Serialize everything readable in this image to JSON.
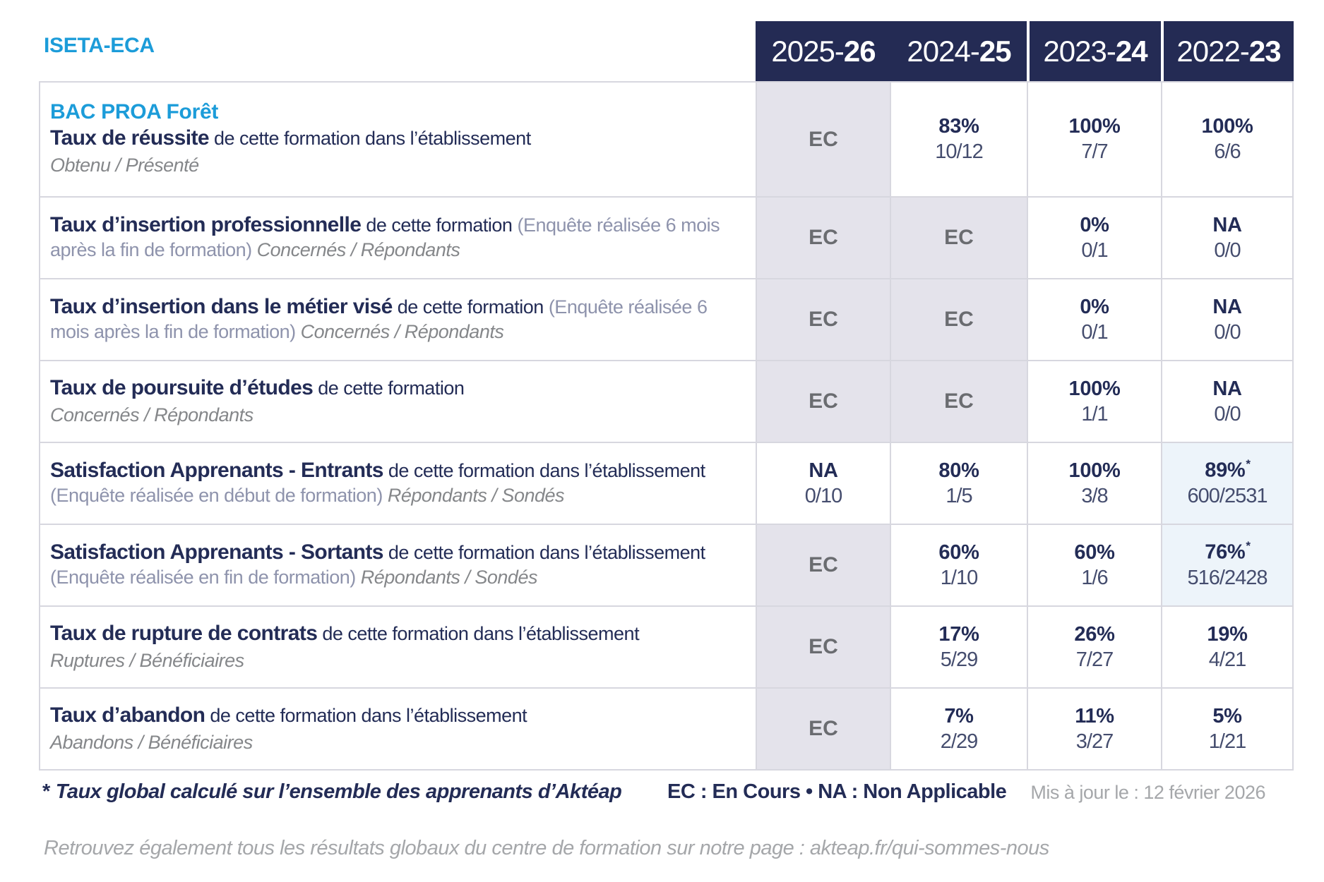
{
  "brand": "ISETA-ECA",
  "header": {
    "years": [
      {
        "prefix": "2025-",
        "suffix": "26"
      },
      {
        "prefix": "2024-",
        "suffix": "25"
      },
      {
        "prefix": "2023-",
        "suffix": "24"
      },
      {
        "prefix": "2022-",
        "suffix": "23"
      }
    ]
  },
  "table": {
    "rows": [
      {
        "pre_title": "BAC PROA Forêt",
        "title_bold": "Taux de réussite",
        "title_rest": " de cette formation dans l’établissement",
        "subtitle": "Obtenu / Présenté",
        "values": [
          {
            "main": "EC"
          },
          {
            "main": "83%",
            "sub": "10/12"
          },
          {
            "main": "100%",
            "sub": "7/7"
          },
          {
            "main": "100%",
            "sub": "6/6"
          }
        ]
      },
      {
        "title_bold": "Taux d’insertion professionnelle",
        "title_rest": " de cette formation ",
        "note": "(Enquête réalisée 6 mois après la fin de formation)",
        "subtitle": " Concernés / Répondants",
        "values": [
          {
            "main": "EC"
          },
          {
            "main": "EC"
          },
          {
            "main": "0%",
            "sub": "0/1"
          },
          {
            "main": "NA",
            "sub": "0/0"
          }
        ]
      },
      {
        "title_bold": "Taux d’insertion dans le métier visé",
        "title_rest": " de cette formation ",
        "note": "(Enquête réalisée 6 mois après la fin de formation)",
        "subtitle": " Concernés / Répondants",
        "values": [
          {
            "main": "EC"
          },
          {
            "main": "EC"
          },
          {
            "main": "0%",
            "sub": "0/1"
          },
          {
            "main": "NA",
            "sub": "0/0"
          }
        ]
      },
      {
        "title_bold": "Taux de poursuite d’études",
        "title_rest": " de cette formation",
        "subtitle": "Concernés / Répondants",
        "values": [
          {
            "main": "EC"
          },
          {
            "main": "EC"
          },
          {
            "main": "100%",
            "sub": "1/1"
          },
          {
            "main": "NA",
            "sub": "0/0"
          }
        ]
      },
      {
        "title_bold": "Satisfaction Apprenants - Entrants",
        "title_rest": " de cette formation dans l’établissement ",
        "note": "(Enquête réalisée en début de formation)",
        "subtitle": " Répondants / Sondés",
        "values": [
          {
            "main": "NA",
            "sub": "0/10"
          },
          {
            "main": "80%",
            "sub": "1/5"
          },
          {
            "main": "100%",
            "sub": "3/8"
          },
          {
            "main": "89%",
            "sup": "*",
            "sub": "600/2531"
          }
        ]
      },
      {
        "title_bold": "Satisfaction Apprenants - Sortants",
        "title_rest": " de cette formation dans l’établissement ",
        "note": "(Enquête réalisée en fin de formation)",
        "subtitle": " Répondants / Sondés",
        "values": [
          {
            "main": "EC"
          },
          {
            "main": "60%",
            "sub": "1/10"
          },
          {
            "main": "60%",
            "sub": "1/6"
          },
          {
            "main": "76%",
            "sup": "*",
            "sub": "516/2428"
          }
        ]
      },
      {
        "title_bold": "Taux de rupture de contrats",
        "title_rest": " de cette formation dans l’établissement",
        "subtitle": "Ruptures / Bénéficiaires",
        "values": [
          {
            "main": "EC"
          },
          {
            "main": "17%",
            "sub": "5/29"
          },
          {
            "main": "26%",
            "sub": "7/27"
          },
          {
            "main": "19%",
            "sub": "4/21"
          }
        ]
      },
      {
        "title_bold": "Taux d’abandon",
        "title_rest": " de cette formation dans l’établissement",
        "subtitle": "Abandons / Bénéficiaires",
        "values": [
          {
            "main": "EC"
          },
          {
            "main": "7%",
            "sub": "2/29"
          },
          {
            "main": "11%",
            "sub": "3/27"
          },
          {
            "main": "5%",
            "sub": "1/21"
          }
        ]
      }
    ]
  },
  "footer": {
    "asterisk": "*",
    "asterisk_note": "Taux global calculé sur l’ensemble des apprenants d’Aktéap",
    "legend": "EC : En Cours  •  NA : Non Applicable",
    "updated": "Mis à jour le : 12 février 2026",
    "bottom_line": "Retrouvez également tous les résultats globaux du centre de formation sur notre page : akteap.fr/qui-sommes-nous"
  },
  "colors": {
    "accent_blue": "#1c9cd9",
    "navy": "#232c56",
    "header_bg": "#242b54",
    "ec_cell_bg": "#e4e3eb",
    "highlight_cell_bg": "#edf4fa",
    "ec_text": "#6a6c70",
    "muted_gray": "#a5a7aa",
    "border": "#d7d7df"
  }
}
